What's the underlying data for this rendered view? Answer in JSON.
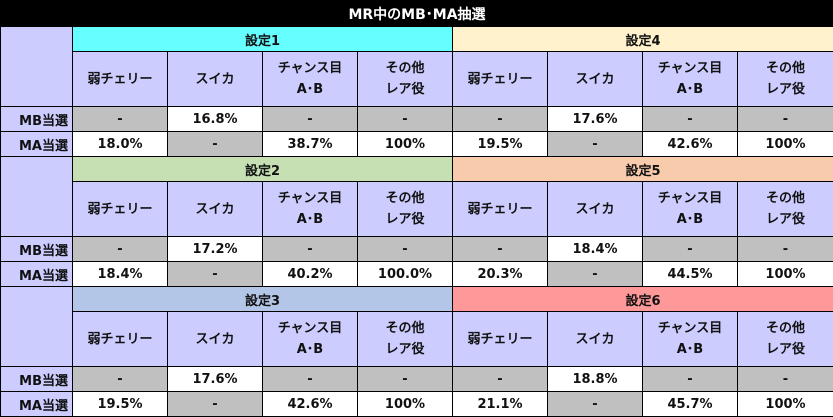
{
  "title": "MR中のMB･MA抽選",
  "row_labels": {
    "mb": "MB当選",
    "ma": "MA当選"
  },
  "columns": [
    {
      "line1": "弱チェリー",
      "line2": ""
    },
    {
      "line1": "スイカ",
      "line2": ""
    },
    {
      "line1": "チャンス目",
      "line2": "A･B"
    },
    {
      "line1": "その他",
      "line2": "レア役"
    }
  ],
  "blocks": [
    {
      "left": {
        "setting": "設定1",
        "color": "#66ffff",
        "mb": [
          "-",
          "16.8%",
          "-",
          "-"
        ],
        "ma": [
          "18.0%",
          "-",
          "38.7%",
          "100%"
        ]
      },
      "right": {
        "setting": "設定4",
        "color": "#fff2cc",
        "mb": [
          "-",
          "17.6%",
          "-",
          "-"
        ],
        "ma": [
          "19.5%",
          "-",
          "42.6%",
          "100%"
        ]
      }
    },
    {
      "left": {
        "setting": "設定2",
        "color": "#c6e0b4",
        "mb": [
          "-",
          "17.2%",
          "-",
          "-"
        ],
        "ma": [
          "18.4%",
          "-",
          "40.2%",
          "100.0%"
        ]
      },
      "right": {
        "setting": "設定5",
        "color": "#f8cbad",
        "mb": [
          "-",
          "18.4%",
          "-",
          "-"
        ],
        "ma": [
          "20.3%",
          "-",
          "44.5%",
          "100%"
        ]
      }
    },
    {
      "left": {
        "setting": "設定3",
        "color": "#b4c6e7",
        "mb": [
          "-",
          "17.6%",
          "-",
          "-"
        ],
        "ma": [
          "19.5%",
          "-",
          "42.6%",
          "100%"
        ]
      },
      "right": {
        "setting": "設定6",
        "color": "#ff9999",
        "mb": [
          "-",
          "18.8%",
          "-",
          "-"
        ],
        "ma": [
          "21.1%",
          "-",
          "45.7%",
          "100%"
        ]
      }
    }
  ]
}
